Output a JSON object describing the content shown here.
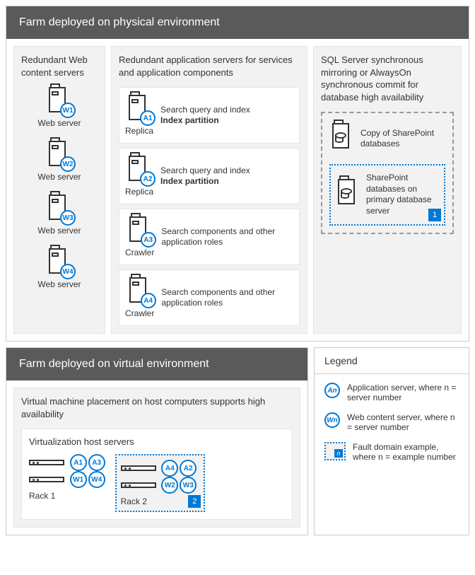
{
  "colors": {
    "header_bg": "#5a5a5a",
    "panel_bg": "#f2f2f2",
    "accent": "#0078d4",
    "border": "#cccccc",
    "text": "#333333"
  },
  "physical": {
    "title": "Farm deployed on physical environment",
    "web": {
      "title": "Redundant Web content servers",
      "items": [
        {
          "badge": "W1",
          "label": "Web server"
        },
        {
          "badge": "W2",
          "label": "Web server"
        },
        {
          "badge": "W3",
          "label": "Web server"
        },
        {
          "badge": "W4",
          "label": "Web server"
        }
      ]
    },
    "app": {
      "title": "Redundant application servers for services and application components",
      "items": [
        {
          "badge": "A1",
          "role": "Replica",
          "line1": "Search query and index",
          "line2": "Index partition",
          "bold2": true
        },
        {
          "badge": "A2",
          "role": "Replica",
          "line1": "Search query and index",
          "line2": "Index partition",
          "bold2": true
        },
        {
          "badge": "A3",
          "role": "Crawler",
          "line1": "Search components and other application roles",
          "line2": "",
          "bold2": false
        },
        {
          "badge": "A4",
          "role": "Crawler",
          "line1": "Search components and other application roles",
          "line2": "",
          "bold2": false
        }
      ]
    },
    "sql": {
      "title": "SQL Server synchronous mirroring or AlwaysOn synchronous commit for database high availability",
      "copy_label": "Copy of SharePoint databases",
      "primary_label": "SharePoint databases on primary database server",
      "fault_num": "1"
    }
  },
  "virtual": {
    "title": "Farm deployed on virtual environment",
    "subtitle": "Virtual machine placement on host computers supports high availability",
    "host_title": "Virtualization host servers",
    "rack1": {
      "label": "Rack 1",
      "row1": [
        "A1",
        "A3"
      ],
      "row2": [
        "W1",
        "W4"
      ]
    },
    "rack2": {
      "label": "Rack 2",
      "row1": [
        "A4",
        "A2"
      ],
      "row2": [
        "W2",
        "W3"
      ],
      "fault_num": "2"
    }
  },
  "legend": {
    "title": "Legend",
    "app": {
      "badge": "An",
      "text": "Application server, where n = server number"
    },
    "web": {
      "badge": "Wn",
      "text": "Web content server, where n = server number"
    },
    "fault": {
      "badge": "n",
      "text": "Fault domain example, where n = example number"
    }
  }
}
